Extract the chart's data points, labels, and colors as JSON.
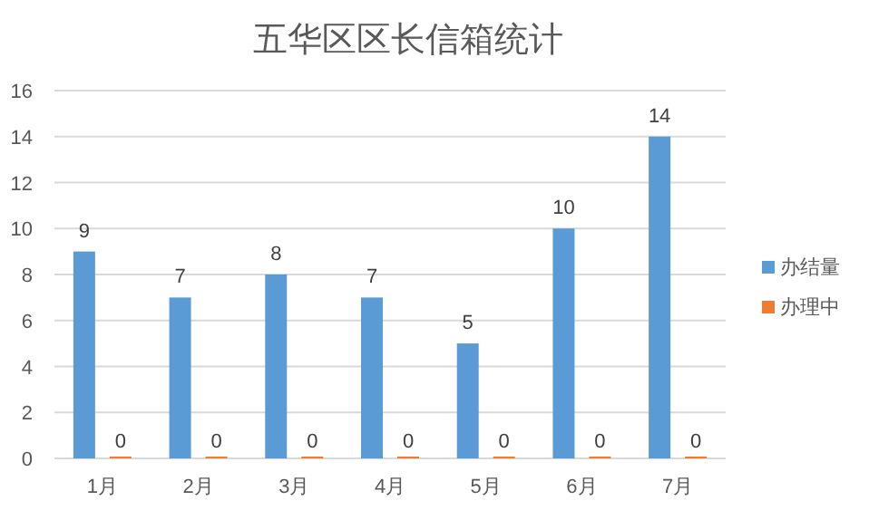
{
  "chart_data": {
    "type": "bar",
    "title": "五华区区长信箱统计",
    "categories": [
      "1月",
      "2月",
      "3月",
      "4月",
      "5月",
      "6月",
      "7月"
    ],
    "series": [
      {
        "name": "办结量",
        "color": "#5b9bd5",
        "values": [
          9,
          7,
          8,
          7,
          5,
          10,
          14
        ]
      },
      {
        "name": "办理中",
        "color": "#ed7d31",
        "values": [
          0,
          0,
          0,
          0,
          0,
          0,
          0
        ]
      }
    ],
    "ylim": [
      0,
      16
    ],
    "yticks": [
      0,
      2,
      4,
      6,
      8,
      10,
      12,
      14,
      16
    ],
    "grid": "y",
    "legend": "right",
    "data_labels": true
  }
}
